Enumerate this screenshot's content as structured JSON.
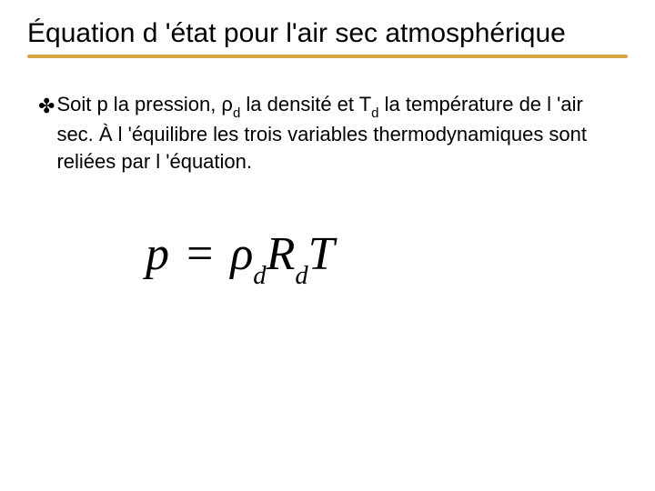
{
  "title": "Équation d 'état pour l'air sec atmosphérique",
  "underline_color": "#d4a943",
  "bullet_glyph": "✤",
  "body": {
    "pre": "Soit p la pression, ",
    "rho": "ρ",
    "rho_sub": "d",
    "mid1": " la densité et T",
    "t_sub": "d",
    "rest": " la température de l 'air sec. À l 'équilibre les trois variables thermodynamiques sont reliées par l 'équation."
  },
  "equation": {
    "p": "p",
    "eq": " = ",
    "rho": "ρ",
    "rho_sub": "d",
    "R": "R",
    "R_sub": "d",
    "T": "T"
  },
  "style": {
    "title_fontsize": 30,
    "body_fontsize": 22,
    "equation_fontsize": 52,
    "background": "#ffffff",
    "text_color": "#000000"
  }
}
